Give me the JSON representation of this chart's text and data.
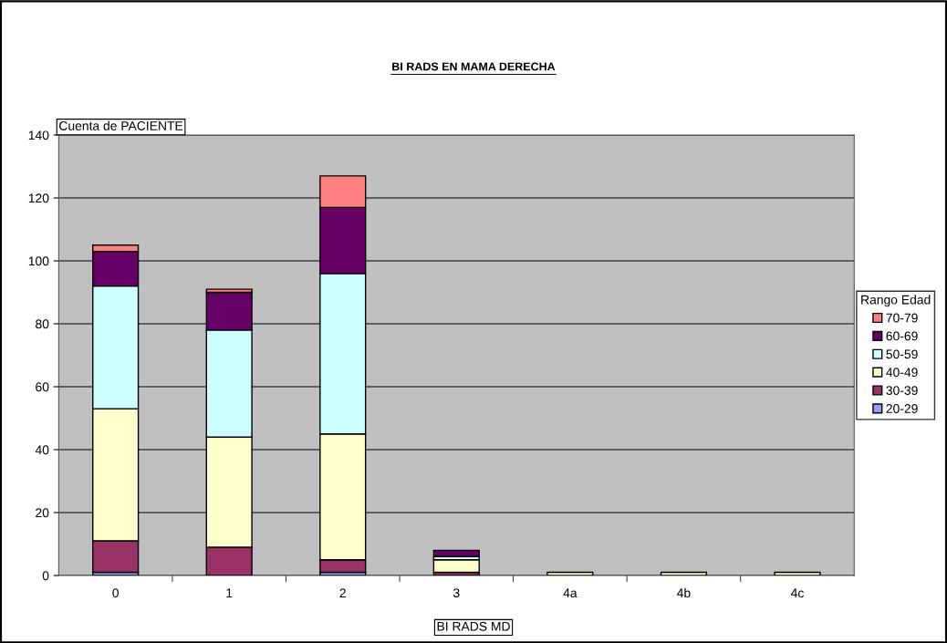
{
  "chart_data": {
    "type": "bar",
    "title": "BI RADS EN MAMA DERECHA",
    "xlabel": "BI RADS MD",
    "ylabel": "Cuenta de PACIENTE",
    "legend_title": "Rango Edad",
    "categories": [
      "0",
      "1",
      "2",
      "3",
      "4a",
      "4b",
      "4c"
    ],
    "stacked": true,
    "series": [
      {
        "name": "20-29",
        "color": "#9999ff",
        "values": [
          1,
          null,
          1,
          null,
          null,
          null,
          null
        ]
      },
      {
        "name": "30-39",
        "color": "#993366",
        "values": [
          10,
          9,
          4,
          1,
          null,
          null,
          null
        ]
      },
      {
        "name": "40-49",
        "color": "#ffffcc",
        "values": [
          42,
          35,
          40,
          4,
          1,
          1,
          1
        ]
      },
      {
        "name": "50-59",
        "color": "#ccffff",
        "values": [
          39,
          34,
          51,
          1,
          null,
          null,
          null
        ]
      },
      {
        "name": "60-69",
        "color": "#660066",
        "values": [
          11,
          12,
          21,
          2,
          null,
          null,
          null
        ]
      },
      {
        "name": "70-79",
        "color": "#ff8080",
        "values": [
          2,
          1,
          10,
          null,
          null,
          null,
          null
        ]
      }
    ],
    "ylim": [
      0,
      140
    ],
    "yticks": [
      0,
      20,
      40,
      60,
      80,
      100,
      120,
      140
    ],
    "grid": "y",
    "legend": "right"
  }
}
